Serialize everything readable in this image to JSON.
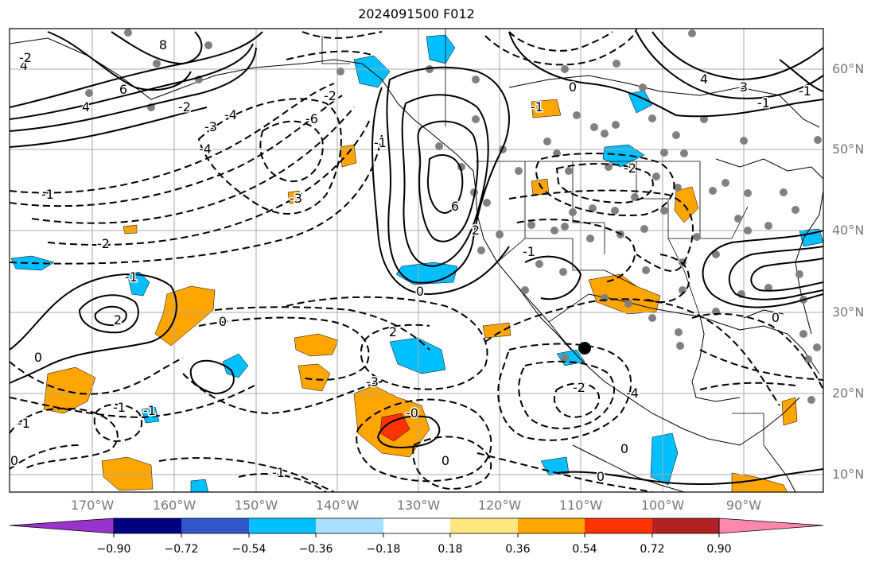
{
  "title": "2024091500 F012",
  "lat_labels": [
    "60°N",
    "50°N",
    "40°N",
    "30°N",
    "20°N",
    "10°N"
  ],
  "lon_labels": [
    "170°W",
    "160°W",
    "150°W",
    "140°W",
    "130°W",
    "120°W",
    "110°W",
    "100°W",
    "90°W"
  ],
  "colorbar": {
    "ticks": [
      "−0.90",
      "−0.72",
      "−0.54",
      "−0.36",
      "−0.18",
      "0.18",
      "0.36",
      "0.54",
      "0.72",
      "0.90"
    ],
    "colors": [
      "#9933cc",
      "#000080",
      "#3355cc",
      "#00bfff",
      "#aadfff",
      "#ffffff",
      "#ffe680",
      "#ffa500",
      "#ff3300",
      "#b22222",
      "#ff88aa"
    ]
  },
  "contour_labels": [
    "4",
    "6",
    "8",
    "4",
    "-2",
    "-3",
    "-4",
    "-6",
    "-3",
    "-4",
    "-1",
    "-2",
    "-1",
    "2",
    "0",
    "-1",
    "-1",
    "2",
    "0",
    "-2",
    "-1",
    "0",
    "2",
    "4",
    "6",
    "-6",
    "-2",
    "-1",
    "-4",
    "-3",
    "4",
    "3",
    "-1",
    "0",
    "-1",
    "-2",
    "0",
    "-1",
    "0",
    "0",
    "0",
    "-1",
    "-2",
    "-0",
    "-1",
    "0"
  ]
}
